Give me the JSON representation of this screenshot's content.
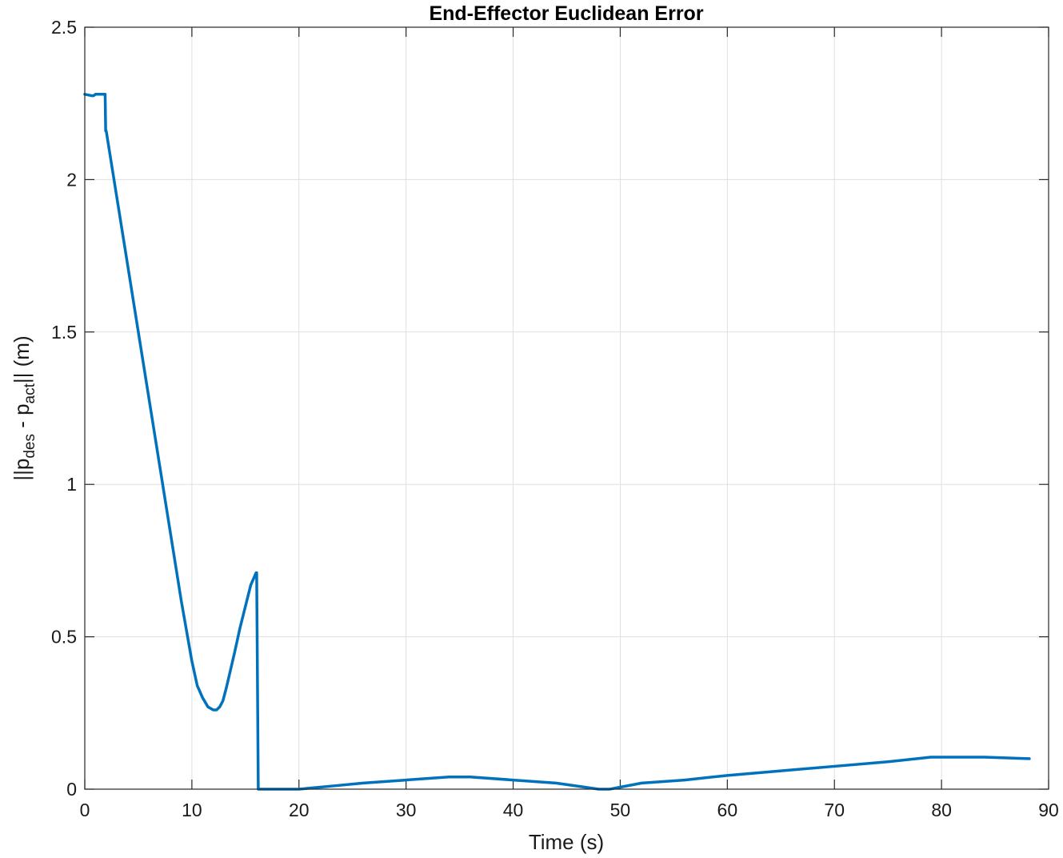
{
  "chart_data": {
    "type": "line",
    "title": "End-Effector Euclidean Error",
    "xlabel": "Time (s)",
    "ylabel": {
      "prefix": "||p",
      "sub1": "des",
      "middle": " - p",
      "sub2": "act",
      "suffix": "|| (m)"
    },
    "xlim": [
      0,
      90
    ],
    "ylim": [
      0,
      2.5
    ],
    "xticks": [
      0,
      10,
      20,
      30,
      40,
      50,
      60,
      70,
      80,
      90
    ],
    "xtick_labels": [
      "0",
      "10",
      "20",
      "30",
      "40",
      "50",
      "60",
      "70",
      "80",
      "90"
    ],
    "yticks": [
      0,
      0.5,
      1,
      1.5,
      2,
      2.5
    ],
    "ytick_labels": [
      "0",
      "0.5",
      "1",
      "1.5",
      "2",
      "2.5"
    ],
    "grid": true,
    "line_color": "#0072BD",
    "series": [
      {
        "x": [
          0,
          0.7,
          0.8,
          1.0,
          1.9,
          1.95,
          2.0,
          3,
          4,
          5,
          6,
          7,
          8,
          9,
          10,
          10.5,
          11,
          11.5,
          12,
          12.3,
          12.6,
          12.9,
          13.2,
          13.6,
          14,
          14.5,
          15,
          15.5,
          16.0,
          16.05,
          16.2,
          17,
          18,
          20,
          23,
          26,
          30,
          34,
          36,
          40,
          44,
          48,
          49,
          52,
          56,
          60,
          65,
          70,
          75,
          79,
          84,
          88.2
        ],
        "y": [
          2.28,
          2.275,
          2.275,
          2.28,
          2.28,
          2.16,
          2.16,
          1.94,
          1.72,
          1.5,
          1.28,
          1.06,
          0.84,
          0.62,
          0.42,
          0.34,
          0.3,
          0.27,
          0.26,
          0.26,
          0.27,
          0.29,
          0.33,
          0.39,
          0.45,
          0.53,
          0.6,
          0.67,
          0.71,
          0.71,
          0.0,
          0.0,
          0.0,
          0.0,
          0.01,
          0.02,
          0.03,
          0.04,
          0.04,
          0.03,
          0.02,
          0.0,
          0.0,
          0.02,
          0.03,
          0.045,
          0.06,
          0.075,
          0.09,
          0.105,
          0.105,
          0.1
        ]
      }
    ]
  }
}
